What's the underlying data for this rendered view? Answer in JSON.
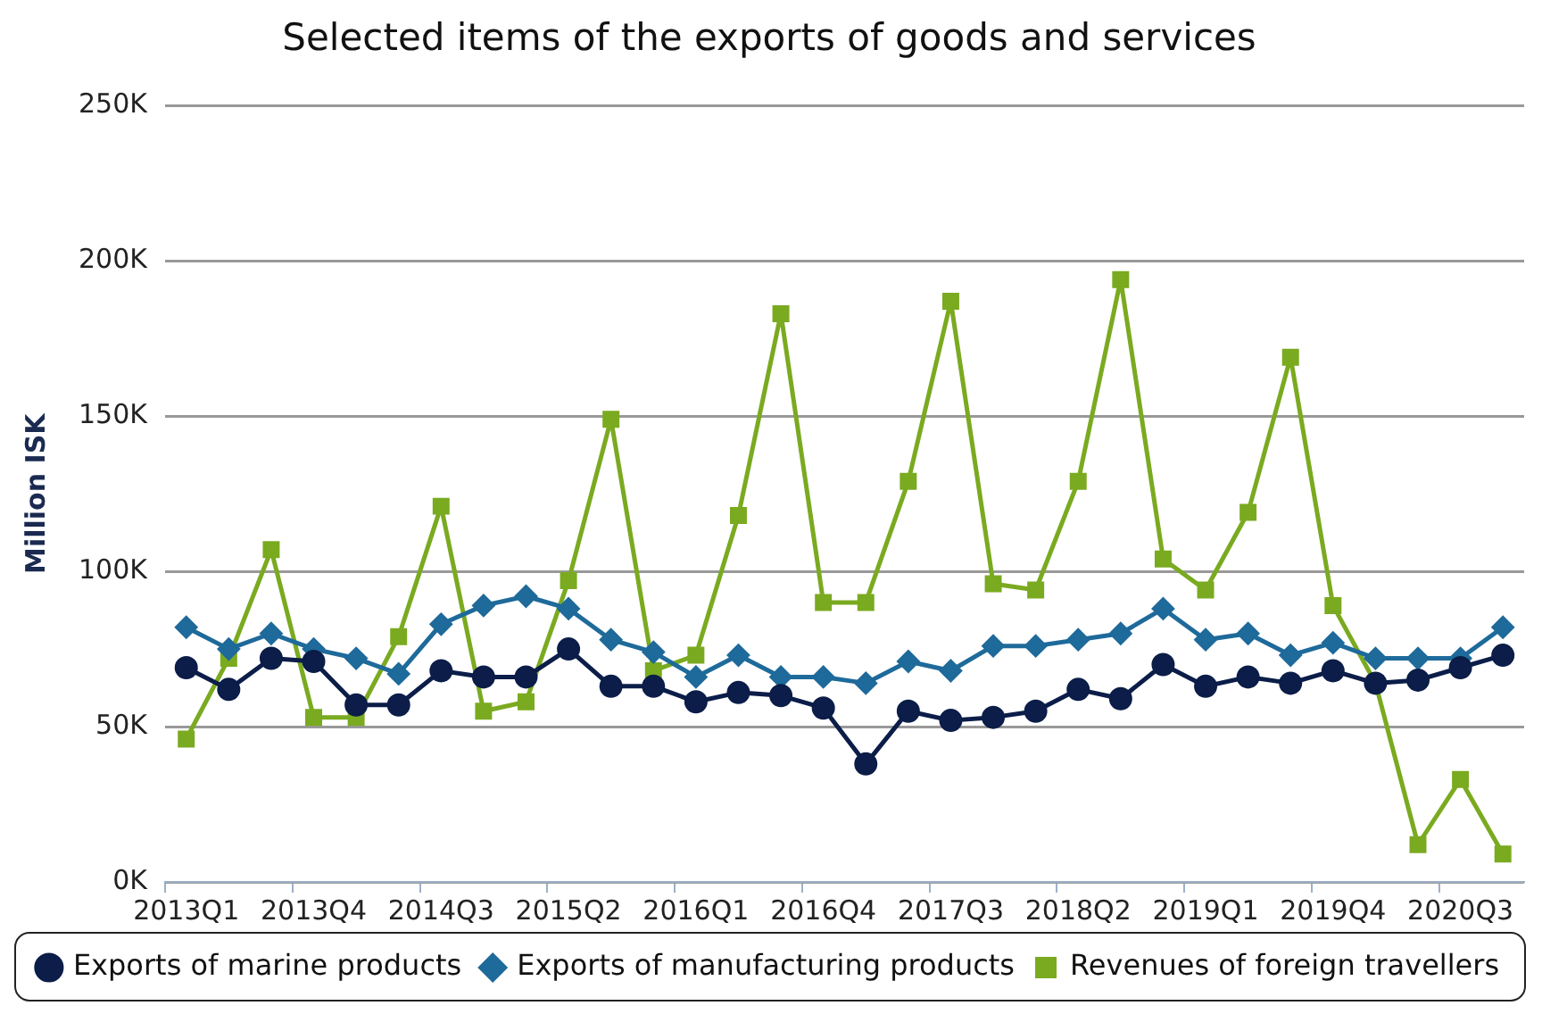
{
  "chart_data": {
    "type": "line",
    "title": "Selected items of the exports of goods and services",
    "ylabel": "Million ISK",
    "categories": [
      "2013Q1",
      null,
      null,
      "2013Q4",
      null,
      null,
      "2014Q3",
      null,
      null,
      "2015Q2",
      null,
      null,
      "2016Q1",
      null,
      null,
      "2016Q4",
      null,
      null,
      "2017Q3",
      null,
      null,
      "2018Q2",
      null,
      null,
      "2019Q1",
      null,
      null,
      "2019Q4",
      null,
      null,
      "2020Q3",
      null
    ],
    "series": [
      {
        "name": "Exports of marine products",
        "color": "#0b1d48",
        "marker": "circle",
        "values": [
          69000,
          62000,
          72000,
          71000,
          57000,
          57000,
          68000,
          66000,
          66000,
          75000,
          63000,
          63000,
          58000,
          61000,
          60000,
          56000,
          38000,
          55000,
          52000,
          53000,
          55000,
          62000,
          59000,
          70000,
          63000,
          66000,
          64000,
          68000,
          64000,
          65000,
          69000,
          73000
        ]
      },
      {
        "name": "Exports of manufacturing products",
        "color": "#1e6a9a",
        "marker": "diamond",
        "values": [
          82000,
          75000,
          80000,
          75000,
          72000,
          67000,
          83000,
          89000,
          92000,
          88000,
          78000,
          74000,
          66000,
          73000,
          66000,
          66000,
          64000,
          71000,
          68000,
          76000,
          76000,
          78000,
          80000,
          88000,
          78000,
          80000,
          73000,
          77000,
          72000,
          72000,
          72000,
          82000
        ]
      },
      {
        "name": "Revenues of foreign travellers",
        "color": "#7aaa20",
        "marker": "square",
        "values": [
          46000,
          72000,
          107000,
          53000,
          53000,
          79000,
          121000,
          55000,
          58000,
          97000,
          149000,
          68000,
          73000,
          118000,
          183000,
          90000,
          90000,
          129000,
          187000,
          96000,
          94000,
          129000,
          194000,
          104000,
          94000,
          119000,
          169000,
          89000,
          64000,
          12000,
          33000,
          9000
        ]
      }
    ],
    "ylim": [
      0,
      250000
    ],
    "yticks": [
      {
        "value": 0,
        "label": "0K"
      },
      {
        "value": 50000,
        "label": "50K"
      },
      {
        "value": 100000,
        "label": "100K"
      },
      {
        "value": 150000,
        "label": "150K"
      },
      {
        "value": 200000,
        "label": "200K"
      },
      {
        "value": 250000,
        "label": "250K"
      }
    ],
    "grid": "y",
    "legend": "bottom",
    "line_style": "solid"
  }
}
